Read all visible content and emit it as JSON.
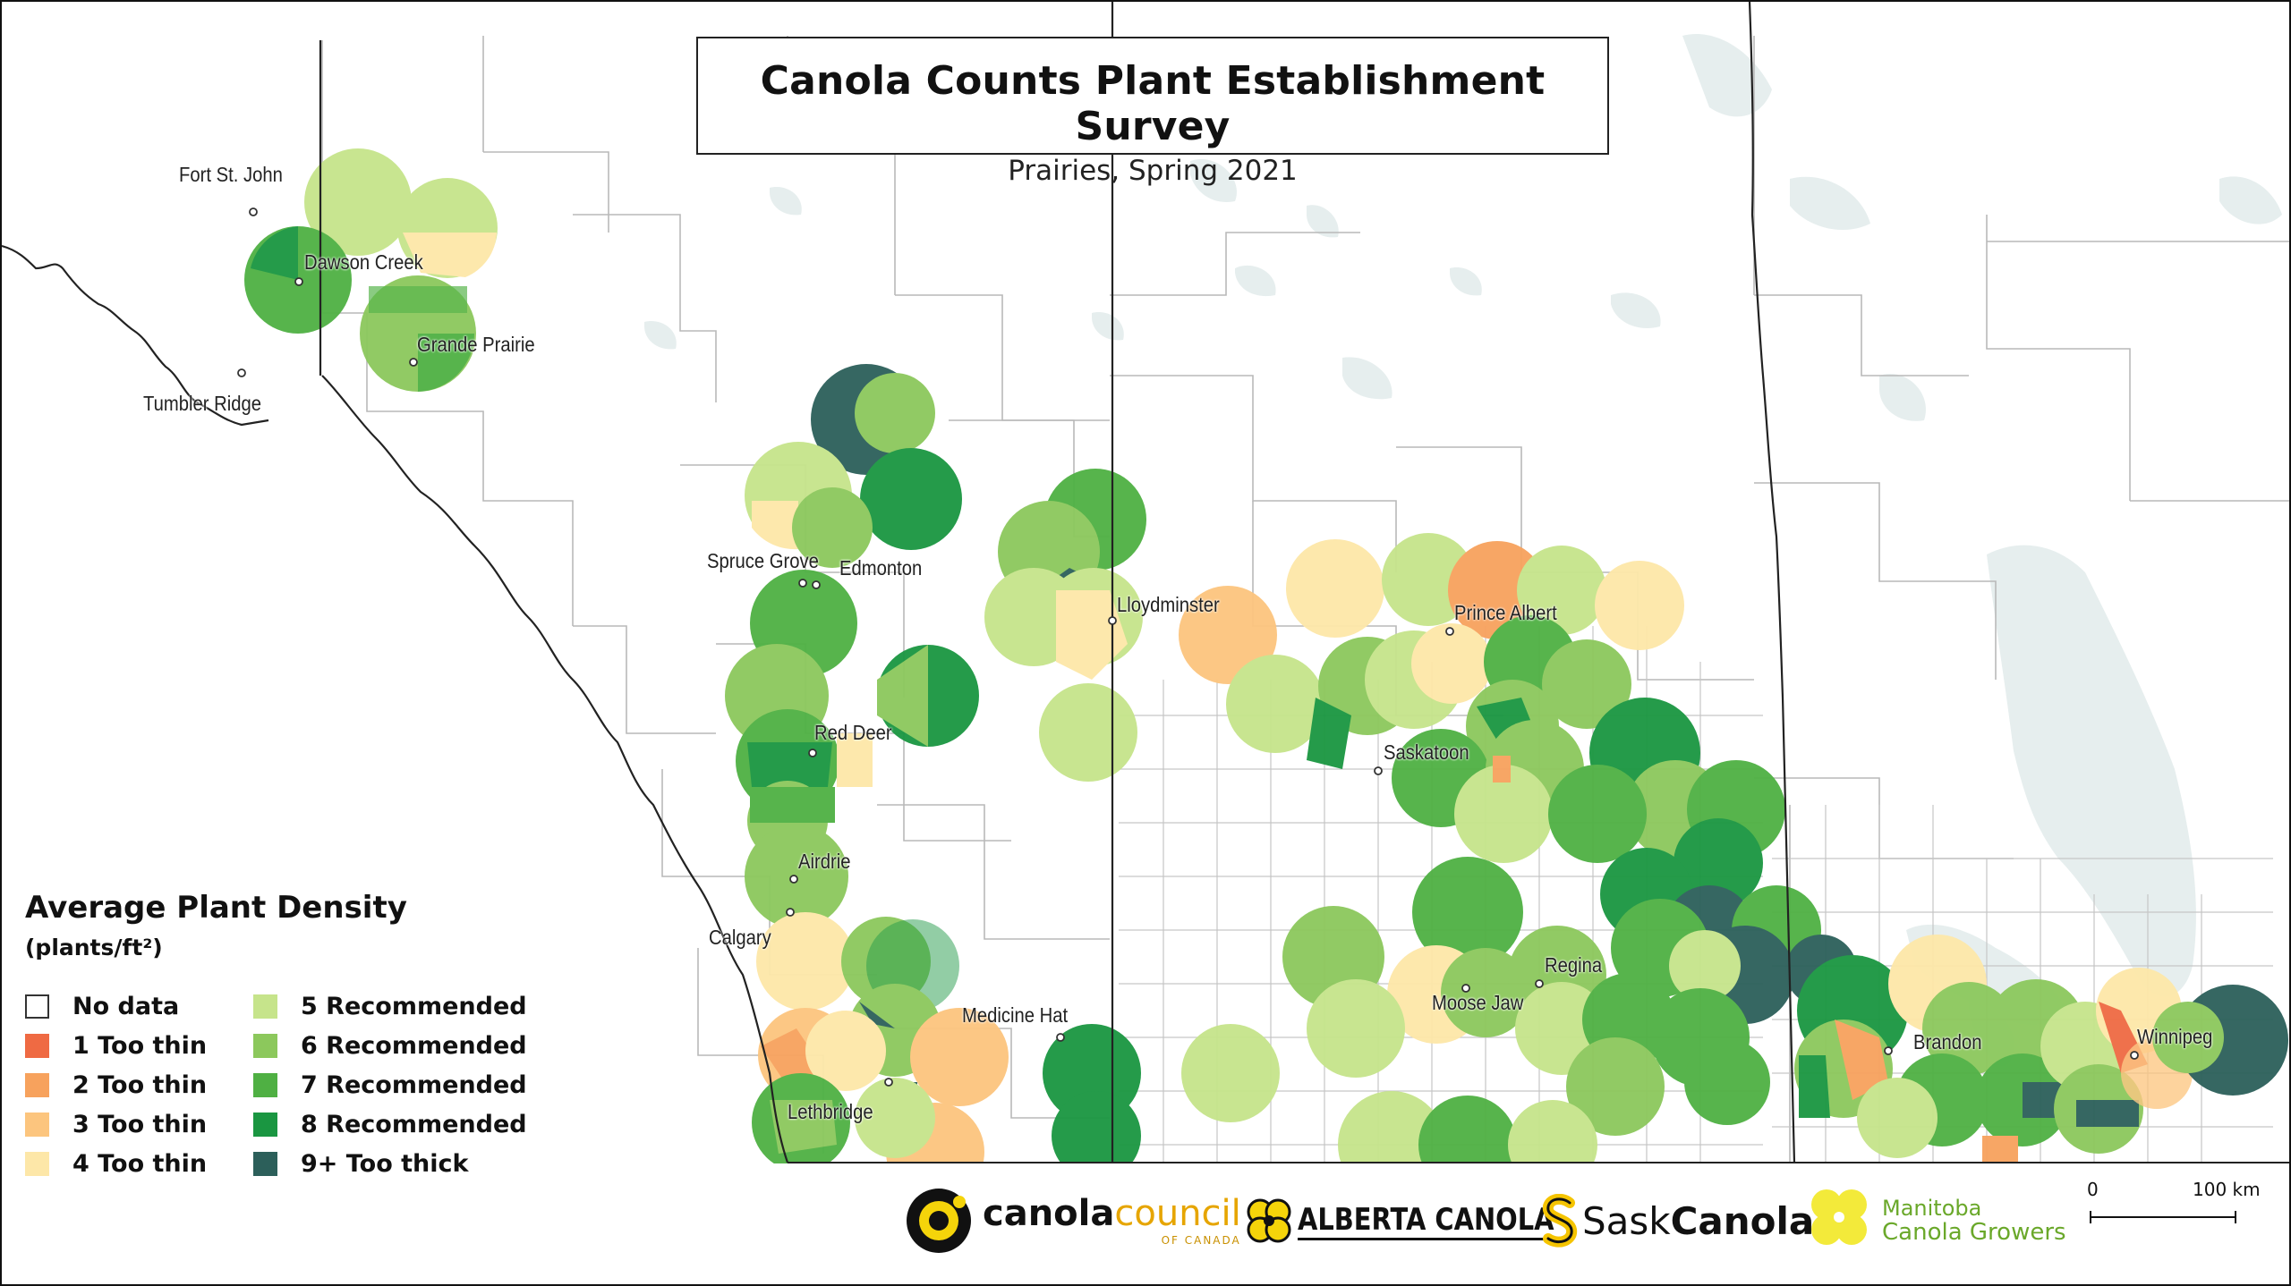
{
  "title": "Canola Counts Plant Establishment Survey",
  "subtitle": "Prairies, Spring 2021",
  "legend": {
    "title": "Average Plant Density",
    "unit": "(plants/ft²)",
    "items": [
      {
        "label": "No data",
        "color": "#ffffff"
      },
      {
        "label": "1 Too thin",
        "color": "#ef6a43"
      },
      {
        "label": "2 Too thin",
        "color": "#f7a25d"
      },
      {
        "label": "3 Too thin",
        "color": "#fcc57e"
      },
      {
        "label": "4 Too thin",
        "color": "#fde7a8"
      },
      {
        "label": "5 Recommended",
        "color": "#c6e48b"
      },
      {
        "label": "6 Recommended",
        "color": "#8cc85c"
      },
      {
        "label": "7 Recommended",
        "color": "#4fb043"
      },
      {
        "label": "8 Recommended",
        "color": "#1a9641"
      },
      {
        "label": "9+ Too thick",
        "color": "#2c5f5a"
      }
    ]
  },
  "places": [
    {
      "name": "Fort St. John"
    },
    {
      "name": "Dawson Creek"
    },
    {
      "name": "Grande Prairie"
    },
    {
      "name": "Tumbler Ridge"
    },
    {
      "name": "Spruce Grove"
    },
    {
      "name": "Edmonton"
    },
    {
      "name": "Red Deer"
    },
    {
      "name": "Airdrie"
    },
    {
      "name": "Calgary"
    },
    {
      "name": "Lethbridge"
    },
    {
      "name": "Medicine Hat"
    },
    {
      "name": "Lloydminster"
    },
    {
      "name": "Prince Albert"
    },
    {
      "name": "Saskatoon"
    },
    {
      "name": "Regina"
    },
    {
      "name": "Moose Jaw"
    },
    {
      "name": "Brandon"
    },
    {
      "name": "Winnipeg"
    }
  ],
  "logos": {
    "ccc_main": "canola",
    "ccc_accent": "council",
    "ccc_sub": "OF CANADA",
    "alberta": "ALBERTA CANOLA",
    "sask_a": "Sask",
    "sask_b": "Canola",
    "mb_line1": "Manitoba",
    "mb_line2": "Canola Growers"
  },
  "scale_bar": {
    "start_label": "0",
    "end_label": "100 km"
  },
  "colors": {
    "water": "#e6eeee",
    "border": "#222222",
    "district": "#b9b9b9"
  }
}
